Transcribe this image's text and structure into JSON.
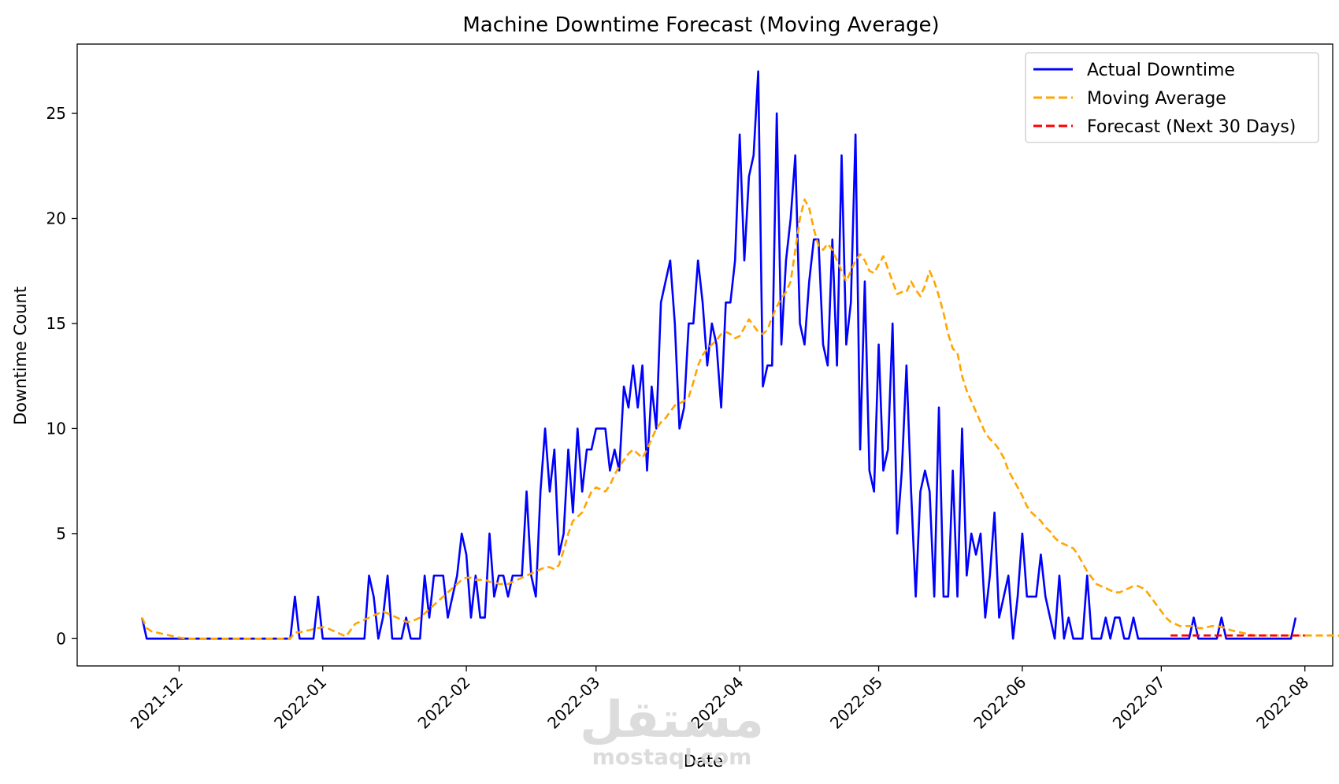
{
  "chart_data": {
    "type": "line",
    "title": "Machine Downtime Forecast (Moving Average)",
    "xlabel": "Date",
    "ylabel": "Downtime Count",
    "xlim": [
      "2021-11-09",
      "2022-08-07"
    ],
    "ylim": [
      -1.3,
      28.3
    ],
    "x_ticks": [
      "2021-12-01",
      "2022-01-01",
      "2022-02-01",
      "2022-03-01",
      "2022-04-01",
      "2022-05-01",
      "2022-06-01",
      "2022-07-01",
      "2022-08-01"
    ],
    "x_tick_labels": [
      "2021-12",
      "2022-01",
      "2022-02",
      "2022-03",
      "2022-04",
      "2022-05",
      "2022-06",
      "2022-07",
      "2022-08"
    ],
    "y_ticks": [
      0,
      5,
      10,
      15,
      20,
      25
    ],
    "grid": false,
    "legend_position": "top-right",
    "series": [
      {
        "name": "Actual Downtime",
        "color": "#0000ff",
        "style": "solid",
        "start_date": "2021-11-23",
        "values": [
          1,
          0,
          0,
          0,
          0,
          0,
          0,
          0,
          0,
          0,
          0,
          0,
          0,
          0,
          0,
          0,
          0,
          0,
          0,
          0,
          0,
          0,
          0,
          0,
          0,
          0,
          0,
          0,
          0,
          0,
          0,
          0,
          0,
          2,
          0,
          0,
          0,
          0,
          2,
          0,
          0,
          0,
          0,
          0,
          0,
          0,
          0,
          0,
          0,
          3,
          2,
          0,
          1,
          3,
          0,
          0,
          0,
          1,
          0,
          0,
          0,
          3,
          1,
          3,
          3,
          3,
          1,
          2,
          3,
          5,
          4,
          1,
          3,
          1,
          1,
          5,
          2,
          3,
          3,
          2,
          3,
          3,
          3,
          7,
          3,
          2,
          7,
          10,
          7,
          9,
          4,
          5,
          9,
          6,
          10,
          7,
          9,
          9,
          10,
          10,
          10,
          8,
          9,
          8,
          12,
          11,
          13,
          11,
          13,
          8,
          12,
          10,
          16,
          17,
          18,
          15,
          10,
          11,
          15,
          15,
          18,
          16,
          13,
          15,
          14,
          11,
          16,
          16,
          18,
          24,
          18,
          22,
          23,
          27,
          12,
          13,
          13,
          25,
          14,
          18,
          20,
          23,
          15,
          14,
          17,
          19,
          19,
          14,
          13,
          19,
          13,
          23,
          14,
          16,
          24,
          9,
          17,
          8,
          7,
          14,
          8,
          9,
          15,
          5,
          8,
          13,
          7,
          2,
          7,
          8,
          7,
          2,
          11,
          2,
          2,
          8,
          2,
          10,
          3,
          5,
          4,
          5,
          1,
          3,
          6,
          1,
          2,
          3,
          0,
          2,
          5,
          2,
          2,
          2,
          4,
          2,
          1,
          0,
          3,
          0,
          1,
          0,
          0,
          0,
          3,
          0,
          0,
          0,
          1,
          0,
          1,
          1,
          0,
          0,
          1,
          0,
          0,
          0,
          0,
          0,
          0,
          0,
          0,
          0,
          0,
          0,
          0,
          1,
          0,
          0,
          0,
          0,
          0,
          1,
          0,
          0,
          0,
          0,
          0,
          0,
          0,
          0,
          0,
          0,
          0,
          0,
          0,
          0,
          0,
          1
        ]
      },
      {
        "name": "Moving Average",
        "color": "#ffa500",
        "style": "dashed",
        "start_date": "2021-11-23",
        "values": [
          1,
          0.5,
          0.35,
          0.3,
          0.25,
          0.2,
          0.15,
          0.1,
          0.05,
          0.02,
          0,
          0,
          0,
          0,
          0,
          0,
          0,
          0,
          0,
          0,
          0,
          0,
          0,
          0,
          0,
          0,
          0,
          0,
          0,
          0,
          0,
          0,
          0,
          0.3,
          0.3,
          0.35,
          0.4,
          0.45,
          0.5,
          0.55,
          0.5,
          0.4,
          0.3,
          0.2,
          0.1,
          0.4,
          0.7,
          0.8,
          0.9,
          1.0,
          1.1,
          1.2,
          1.3,
          1.2,
          1.1,
          1.0,
          0.9,
          0.8,
          0.8,
          0.9,
          1.0,
          1.2,
          1.4,
          1.6,
          1.8,
          2.0,
          2.2,
          2.4,
          2.6,
          2.8,
          2.9,
          2.9,
          2.8,
          2.8,
          2.8,
          2.7,
          2.7,
          2.6,
          2.6,
          2.6,
          2.7,
          2.8,
          2.9,
          3.0,
          3.1,
          3.2,
          3.3,
          3.4,
          3.4,
          3.3,
          3.5,
          4.2,
          5.0,
          5.6,
          5.8,
          6.0,
          6.5,
          7.0,
          7.2,
          7.1,
          7.0,
          7.3,
          7.8,
          8.2,
          8.5,
          8.8,
          9.0,
          8.8,
          8.6,
          9.0,
          9.5,
          10.0,
          10.3,
          10.5,
          10.8,
          11.1,
          11.2,
          11.3,
          11.5,
          12.2,
          13.0,
          13.5,
          13.8,
          14.0,
          14.2,
          14.5,
          14.6,
          14.5,
          14.3,
          14.4,
          14.8,
          15.2,
          14.9,
          14.6,
          14.5,
          14.7,
          15.3,
          15.8,
          16.2,
          16.5,
          17.0,
          18.5,
          20.0,
          20.9,
          20.5,
          19.5,
          18.7,
          18.5,
          18.8,
          18.5,
          18.0,
          17.5,
          17.0,
          17.5,
          18.0,
          18.3,
          18.0,
          17.5,
          17.4,
          17.8,
          18.2,
          17.6,
          17.0,
          16.4,
          16.5,
          16.5,
          17.0,
          16.6,
          16.3,
          16.8,
          17.5,
          17.0,
          16.3,
          15.5,
          14.5,
          13.8,
          13.6,
          12.5,
          11.8,
          11.3,
          10.8,
          10.3,
          9.8,
          9.5,
          9.3,
          9.0,
          8.6,
          8.0,
          7.6,
          7.2,
          6.8,
          6.3,
          6.0,
          5.8,
          5.6,
          5.3,
          5.1,
          4.8,
          4.6,
          4.5,
          4.4,
          4.3,
          4.0,
          3.6,
          3.2,
          2.9,
          2.6,
          2.5,
          2.4,
          2.3,
          2.2,
          2.2,
          2.3,
          2.4,
          2.5,
          2.5,
          2.4,
          2.2,
          1.9,
          1.6,
          1.3,
          1.0,
          0.8,
          0.7,
          0.6,
          0.6,
          0.6,
          0.6,
          0.5,
          0.5,
          0.55,
          0.6,
          0.6,
          0.55,
          0.5,
          0.4,
          0.35,
          0.3,
          0.25,
          0.2,
          0.15,
          0.15,
          0.15,
          0.15,
          0.15,
          0.15,
          0.15,
          0.15,
          0.15,
          0.15,
          0.15,
          0.15,
          0.15,
          0.15,
          0.15,
          0.15,
          0.15,
          0.15,
          0.15,
          0.12,
          0.1,
          0.08,
          0.05,
          0.05,
          0.05,
          0.05,
          0.05,
          0.05,
          0.05,
          0.05
        ]
      },
      {
        "name": "Forecast (Next 30 Days)",
        "color": "#ff0000",
        "style": "dashed",
        "x": [
          "2022-07-03",
          "2022-08-01"
        ],
        "values": [
          0.15,
          0.15
        ]
      }
    ]
  },
  "watermark": {
    "logo_text": "مستقل",
    "site_text": "mostaql.com"
  }
}
